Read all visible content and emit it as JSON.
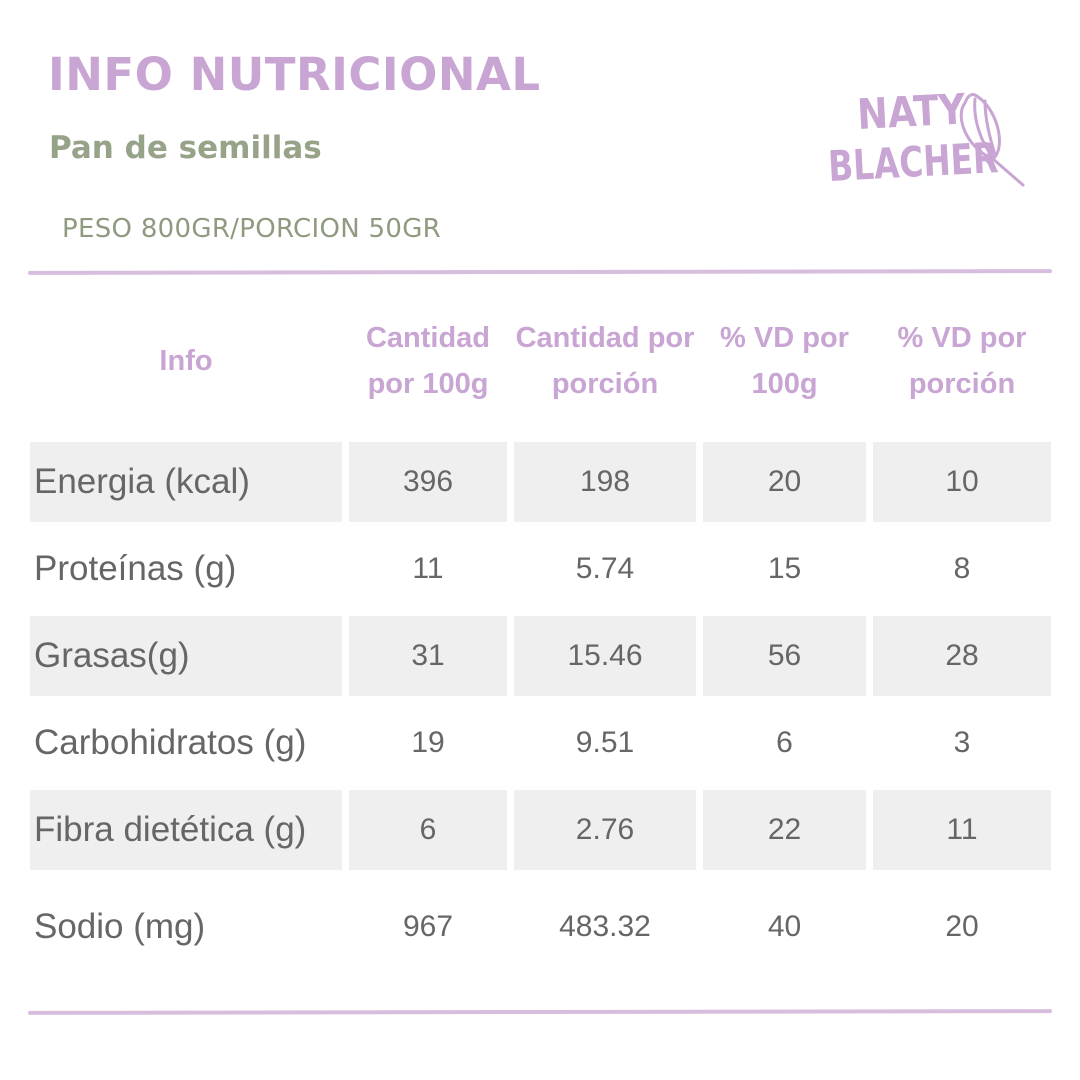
{
  "header": {
    "title": "INFO NUTRICIONAL",
    "subtitle": "Pan de semillas",
    "weight_line": "PESO 800GR/PORCION 50GR"
  },
  "brand": {
    "logo_line1": "NATY",
    "logo_line2": "BLACHER",
    "logo_icon": "whisk-icon",
    "color": "#c9a5d3"
  },
  "colors": {
    "accent_purple": "#c9a5d3",
    "accent_green": "#97a388",
    "row_shade": "#efefef",
    "text": "#666666"
  },
  "table": {
    "columns": [
      "Info",
      "Cantidad por 100g",
      "Cantidad por porción",
      "% VD por 100g",
      "% VD por porción"
    ],
    "rows": [
      {
        "label": "Energia (kcal)",
        "values": [
          "396",
          "198",
          "20",
          "10"
        ]
      },
      {
        "label": "Proteínas (g)",
        "values": [
          "11",
          "5.74",
          "15",
          "8"
        ]
      },
      {
        "label": "Grasas(g)",
        "values": [
          "31",
          "15.46",
          "56",
          "28"
        ]
      },
      {
        "label": "Carbohidratos (g)",
        "values": [
          "19",
          "9.51",
          "6",
          "3"
        ]
      },
      {
        "label": "Fibra dietética (g)",
        "values": [
          "6",
          "2.76",
          "22",
          "11"
        ]
      },
      {
        "label": "Sodio (mg)",
        "values": [
          "967",
          "483.32",
          "40",
          "20"
        ]
      }
    ]
  }
}
